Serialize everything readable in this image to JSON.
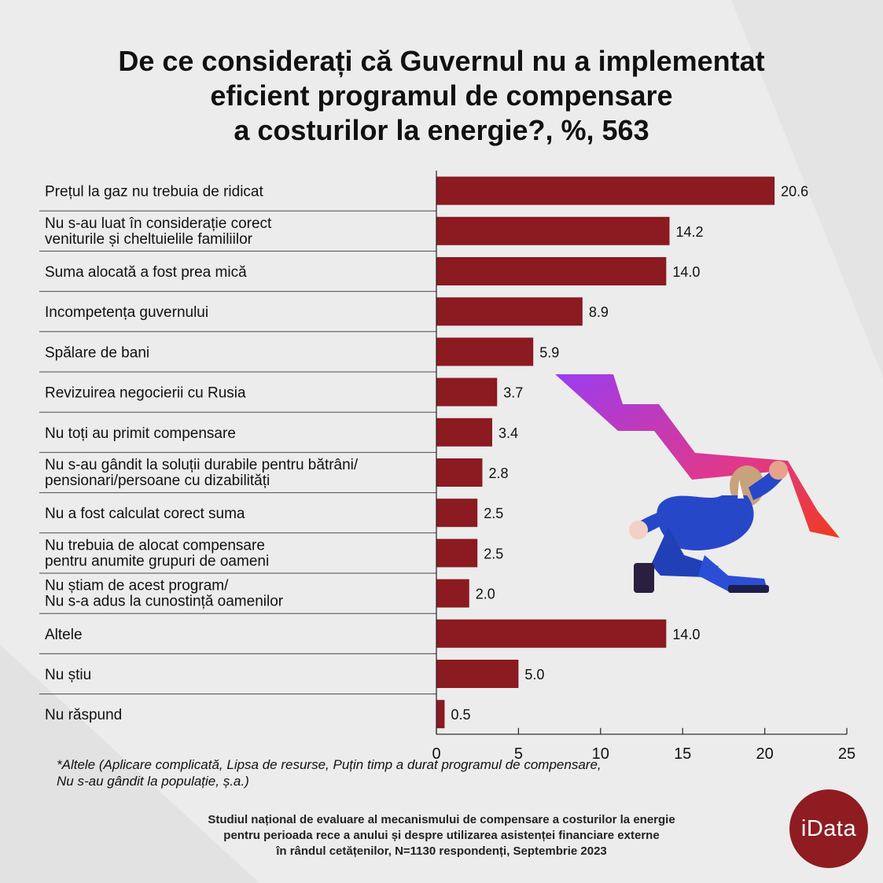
{
  "title": {
    "line1": "De ce considerați că Guvernul nu a implementat",
    "line2_pre": "eficient ",
    "line2_bold": "programul de compensare",
    "line3": "a costurilor la energie?, %, 563"
  },
  "chart_data": {
    "type": "bar",
    "orientation": "horizontal",
    "categories": [
      [
        "Prețul la gaz nu trebuia de ridicat"
      ],
      [
        "Nu s-au luat în considerație corect",
        "veniturile și cheltuielile familiilor"
      ],
      [
        "Suma alocată a fost prea mică"
      ],
      [
        "Incompetența guvernului"
      ],
      [
        "Spălare de bani"
      ],
      [
        "Revizuirea negocierii cu Rusia"
      ],
      [
        "Nu toți au primit compensare"
      ],
      [
        "Nu s-au gândit la soluții durabile pentru bătrâni/",
        "pensionari/persoane cu dizabilități"
      ],
      [
        "Nu a fost calculat corect suma"
      ],
      [
        "Nu trebuia de alocat compensare",
        "pentru anumite grupuri de oameni"
      ],
      [
        "Nu știam de acest program/",
        "Nu s-a adus la cunostință oamenilor"
      ],
      [
        "Altele"
      ],
      [
        "Nu știu"
      ],
      [
        "Nu răspund"
      ]
    ],
    "values": [
      20.6,
      14.2,
      14.0,
      8.9,
      5.9,
      3.7,
      3.4,
      2.8,
      2.5,
      2.5,
      2.0,
      14.0,
      5.0,
      0.5
    ],
    "value_labels": [
      "20.6",
      "14.2",
      "14.0",
      "8.9",
      "5.9",
      "3.7",
      "3.4",
      "2.8",
      "2.5",
      "2.5",
      "2.0",
      "14.0",
      "5.0",
      "0.5"
    ],
    "xlim": [
      0,
      25
    ],
    "xticks": [
      0,
      5,
      10,
      15,
      20,
      25
    ],
    "bar_color": "#8b1a21",
    "grid": false
  },
  "footnote": {
    "line1": "*Altele (Aplicare complicată, Lipsa de resurse, Puțin timp a durat programul de compensare,",
    "line2": "Nu s-au gândit la populație, ș.a.)"
  },
  "source": {
    "line1": "Studiul național de evaluare al mecanismului de compensare a costurilor la energie",
    "line2": "pentru perioada rece a anului și despre utilizarea asistenței financiare externe",
    "line3": "în rândul cetățenilor, N=1130 respondenți, Septembrie 2023"
  },
  "logo": {
    "text": "iData",
    "color": "#8f1c21"
  },
  "illustration": {
    "icon": "falling-arrow-businessman-icon",
    "arrow_from": "#9b3cf0",
    "arrow_to": "#f03a1e",
    "suit_color": "#2747c9"
  }
}
